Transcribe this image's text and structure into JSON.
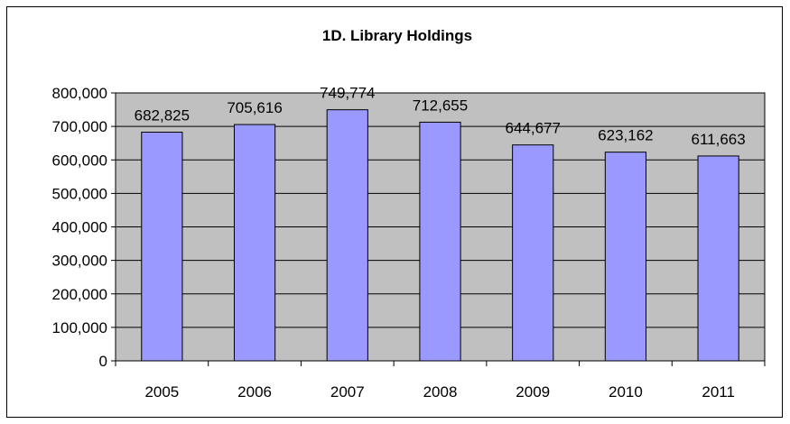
{
  "chart_data": {
    "type": "bar",
    "title": "1D. Library Holdings",
    "xlabel": "",
    "ylabel": "",
    "categories": [
      "2005",
      "2006",
      "2007",
      "2008",
      "2009",
      "2010",
      "2011"
    ],
    "values": [
      682825,
      705616,
      749774,
      712655,
      644677,
      623162,
      611663
    ],
    "data_labels": [
      "682,825",
      "705,616",
      "749,774",
      "712,655",
      "644,677",
      "623,162",
      "611,663"
    ],
    "yticks": [
      0,
      100000,
      200000,
      300000,
      400000,
      500000,
      600000,
      700000,
      800000
    ],
    "ytick_labels": [
      "0",
      "100,000",
      "200,000",
      "300,000",
      "400,000",
      "500,000",
      "600,000",
      "700,000",
      "800,000"
    ],
    "ylim": [
      0,
      800000
    ],
    "grid": true,
    "legend": "none",
    "colors": {
      "bar_fill": "#9999ff",
      "plot_bg": "#c0c0c0",
      "bar_stroke": "#000000",
      "grid": "#000000"
    }
  }
}
